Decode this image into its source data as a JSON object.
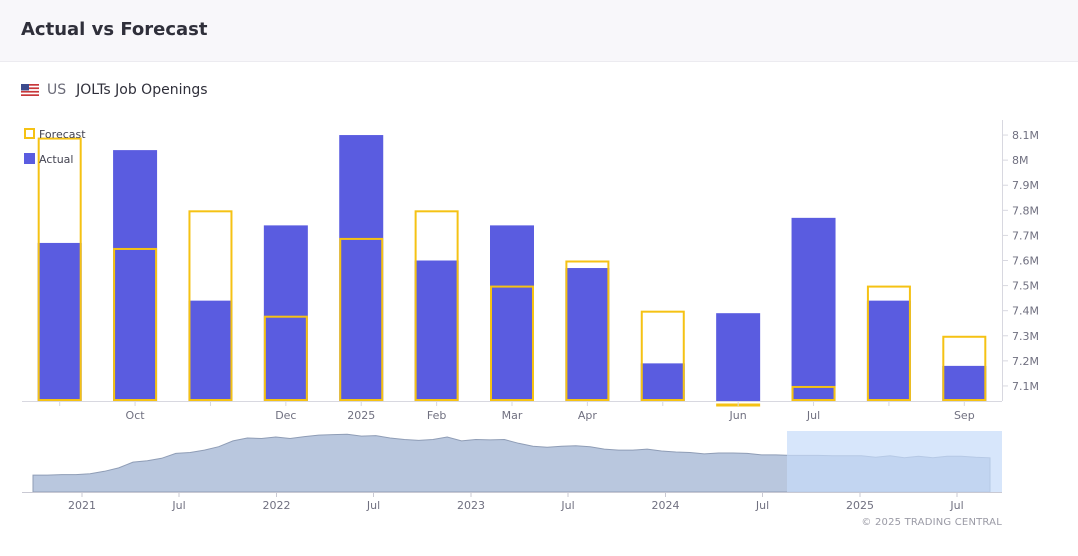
{
  "header": {
    "title": "Actual vs Forecast"
  },
  "indicator": {
    "country": "US",
    "name": "JOLTs Job Openings",
    "flag_icon": "us-flag-icon"
  },
  "colors": {
    "actual": "#5a5ce0",
    "forecast": "#f5c214",
    "navigator_fill": "#b9c7de",
    "navigator_selection": "#c6dcfa",
    "axis": "#d8d8e0",
    "tick_text": "#707080"
  },
  "chart_data": [
    {
      "type": "bar",
      "legend_placement": "top-left",
      "legend": [
        {
          "name": "Forecast",
          "style": "outline"
        },
        {
          "name": "Actual",
          "style": "filled"
        }
      ],
      "categories": [
        "",
        "Oct",
        "",
        "Dec",
        "2025",
        "Feb",
        "Mar",
        "Apr",
        "",
        "Jun",
        "Jul",
        "",
        "Sep"
      ],
      "series": [
        {
          "name": "Actual",
          "values": [
            7.67,
            8.04,
            7.44,
            7.74,
            8.1,
            7.6,
            7.74,
            7.57,
            7.19,
            7.39,
            7.77,
            7.44,
            7.18
          ]
        },
        {
          "name": "Forecast",
          "values": [
            8.09,
            7.65,
            7.8,
            7.38,
            7.69,
            7.8,
            7.5,
            7.6,
            7.4,
            7.03,
            7.1,
            7.5,
            7.3
          ]
        }
      ],
      "y_ticks": [
        "7.1M",
        "7.2M",
        "7.3M",
        "7.4M",
        "7.5M",
        "7.6M",
        "7.7M",
        "7.8M",
        "7.9M",
        "8M",
        "8.1M"
      ],
      "ylim": [
        7.04,
        8.16
      ],
      "grid": false
    },
    {
      "type": "area",
      "role": "navigator",
      "x_ticks": [
        "2021",
        "Jul",
        "2022",
        "Jul",
        "2023",
        "Jul",
        "2024",
        "Jul",
        "2025",
        "Jul"
      ],
      "values": [
        3.5,
        3.5,
        3.6,
        3.6,
        3.8,
        4.3,
        5.0,
        6.2,
        6.5,
        7.0,
        8.0,
        8.2,
        8.7,
        9.4,
        10.6,
        11.2,
        11.1,
        11.4,
        11.1,
        11.5,
        11.8,
        11.9,
        12.0,
        11.6,
        11.7,
        11.2,
        10.9,
        10.7,
        10.9,
        11.4,
        10.6,
        10.9,
        10.8,
        10.9,
        10.1,
        9.5,
        9.3,
        9.5,
        9.6,
        9.4,
        8.9,
        8.7,
        8.7,
        8.9,
        8.5,
        8.3,
        8.2,
        7.9,
        8.1,
        8.1,
        8.0,
        7.7,
        7.7,
        7.6,
        7.6,
        7.6,
        7.5,
        7.5,
        7.5,
        7.2,
        7.5,
        7.1,
        7.4,
        7.1,
        7.4,
        7.4,
        7.2,
        7.1
      ],
      "selected_range": "Aug 2024 – Sep 2025"
    }
  ],
  "footer": {
    "copyright": "© 2025 TRADING CENTRAL"
  }
}
